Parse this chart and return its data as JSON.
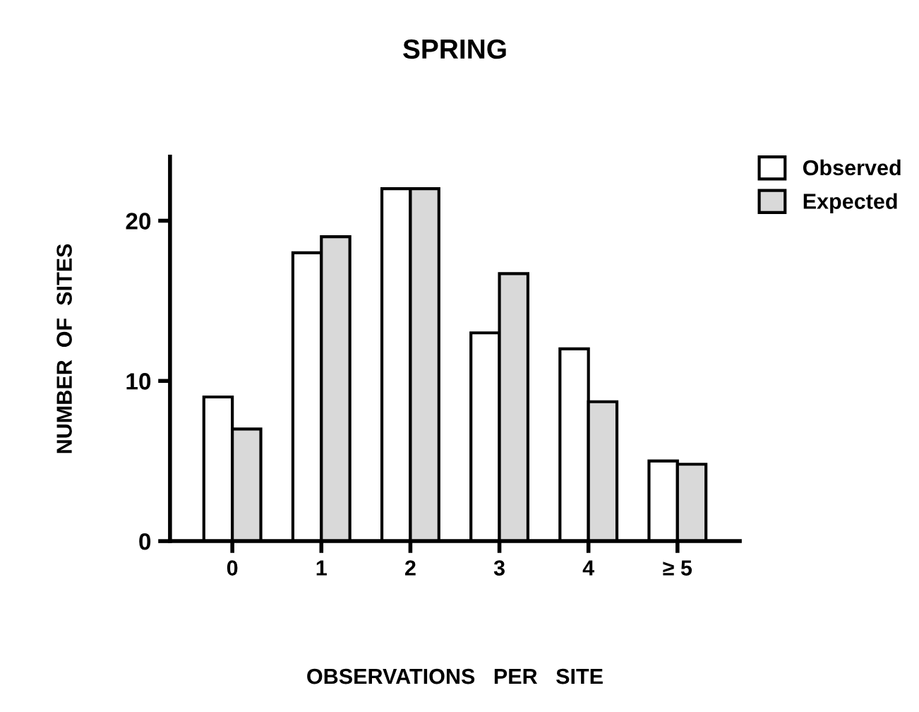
{
  "chart_data": {
    "type": "bar",
    "title": "SPRING",
    "xlabel": "OBSERVATIONS   PER   SITE",
    "ylabel": "NUMBER  OF  SITES",
    "categories": [
      "0",
      "1",
      "2",
      "3",
      "4",
      "≥ 5"
    ],
    "series": [
      {
        "name": "Observed",
        "color": "#ffffff",
        "values": [
          9,
          18,
          22,
          13,
          12,
          5
        ]
      },
      {
        "name": "Expected",
        "color": "#d9d9d9",
        "values": [
          7,
          19,
          22,
          16.7,
          8.7,
          4.8
        ]
      }
    ],
    "ylim": [
      0,
      24
    ],
    "yticks": [
      0,
      10,
      20
    ],
    "grid": false,
    "legend": "top right"
  }
}
